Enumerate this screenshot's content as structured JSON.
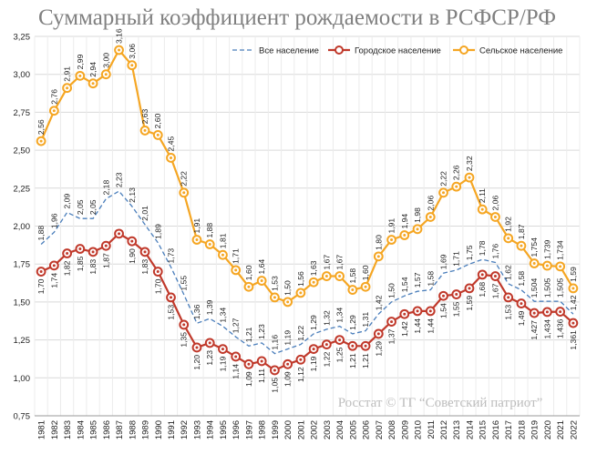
{
  "chart_data": {
    "type": "line",
    "title": "Суммарный коэффициент рождаемости в РСФСР/РФ",
    "source": "Росстат © ТГ “Советский патриот”",
    "x": [
      "1981",
      "1982",
      "1983",
      "1984",
      "1985",
      "1986",
      "1987",
      "1988",
      "1989",
      "1990",
      "1991",
      "1992",
      "1993",
      "1994",
      "1995",
      "1996",
      "1997",
      "1998",
      "1999",
      "2000",
      "2001",
      "2002",
      "2003",
      "2004",
      "2005",
      "2006",
      "2007",
      "2008",
      "2009",
      "2010",
      "2011",
      "2012",
      "2013",
      "2014",
      "2015",
      "2016",
      "2017",
      "2018",
      "2019",
      "2020",
      "2021",
      "2022"
    ],
    "ylim": [
      0.75,
      3.25
    ],
    "yticks": [
      "0,75",
      "1,00",
      "1,25",
      "1,50",
      "1,75",
      "2,00",
      "2,25",
      "2,50",
      "2,75",
      "3,00",
      "3,25"
    ],
    "grid": true,
    "legend_position": "top-right",
    "series": [
      {
        "name": "Все население",
        "style": "dashed",
        "color": "#4a7ebb",
        "values": [
          1.88,
          1.96,
          2.09,
          2.05,
          2.05,
          2.18,
          2.23,
          2.13,
          2.01,
          1.89,
          1.73,
          1.55,
          1.36,
          1.39,
          1.34,
          1.27,
          1.21,
          1.23,
          1.16,
          1.19,
          1.22,
          1.29,
          1.32,
          1.34,
          1.29,
          1.31,
          1.42,
          1.5,
          1.54,
          1.57,
          1.58,
          1.69,
          1.71,
          1.75,
          1.78,
          1.76,
          1.62,
          1.58,
          1.504,
          1.505,
          1.505,
          1.42
        ]
      },
      {
        "name": "Городское население",
        "style": "solid",
        "color": "#c0392b",
        "values": [
          1.7,
          1.74,
          1.82,
          1.85,
          1.83,
          1.87,
          1.95,
          1.9,
          1.83,
          1.7,
          1.53,
          1.35,
          1.2,
          1.23,
          1.19,
          1.14,
          1.09,
          1.11,
          1.05,
          1.09,
          1.12,
          1.19,
          1.22,
          1.25,
          1.21,
          1.21,
          1.29,
          1.37,
          1.42,
          1.44,
          1.44,
          1.54,
          1.55,
          1.59,
          1.68,
          1.67,
          1.53,
          1.49,
          1.427,
          1.434,
          1.436,
          1.361
        ],
        "labels": [
          "1,70",
          "1,74",
          "1,82",
          "1,85",
          "1,83",
          "1,87",
          "",
          "1,90",
          "1,83",
          "1,70",
          "1,53",
          "1,35",
          "1,20",
          "1,23",
          "1,19",
          "1,14",
          "1,09",
          "1,11",
          "1,05",
          "1,09",
          "1,12",
          "1,19",
          "1,22",
          "1,25",
          "1,21",
          "1,21",
          "1,29",
          "1,37",
          "1,42",
          "1,44",
          "1,44",
          "1,54",
          "1,55",
          "1,59",
          "1,68",
          "1,67",
          "1,53",
          "1,49",
          "1,427",
          "1,434",
          "1,436",
          "1,361"
        ]
      },
      {
        "name": "Сельское население",
        "style": "solid",
        "color": "#f5a623",
        "values": [
          2.56,
          2.76,
          2.91,
          2.99,
          2.94,
          3.0,
          3.16,
          3.06,
          2.63,
          2.6,
          2.45,
          2.22,
          1.91,
          1.88,
          1.81,
          1.71,
          1.6,
          1.64,
          1.53,
          1.5,
          1.56,
          1.63,
          1.67,
          1.67,
          1.58,
          1.6,
          1.8,
          1.91,
          1.94,
          1.98,
          2.06,
          2.22,
          2.26,
          2.32,
          2.11,
          2.06,
          1.92,
          1.87,
          1.754,
          1.739,
          1.734,
          1.59
        ],
        "labels": [
          "2,56",
          "2,76",
          "2,91",
          "2,99",
          "2,94",
          "3,00",
          "3,16",
          "3,06",
          "2,63",
          "2,60",
          "2,45",
          "2,22",
          "1,91",
          "1,88",
          "1,81",
          "1,71",
          "1,60",
          "1,64",
          "1,53",
          "1,50",
          "1,56",
          "1,63",
          "1,67",
          "1,67",
          "1,58",
          "1,60",
          "1,80",
          "1,91",
          "1,94",
          "1,98",
          "2,06",
          "2,22",
          "2,26",
          "2,32",
          "2,11",
          "2,06",
          "1,92",
          "1,87",
          "1,754",
          "1,739",
          "1,734",
          "1,59"
        ]
      }
    ],
    "all_population_labels": [
      {
        "x": "1981",
        "label": "1,88"
      },
      {
        "x": "1982",
        "label": "1,96"
      },
      {
        "x": "1983",
        "label": "2,09"
      },
      {
        "x": "1984",
        "label": "2,05"
      },
      {
        "x": "1985",
        "label": "2,05"
      },
      {
        "x": "1986",
        "label": "2,18"
      },
      {
        "x": "1987",
        "label": "2,23"
      },
      {
        "x": "1988",
        "label": "2,13"
      },
      {
        "x": "1989",
        "label": "2,01"
      },
      {
        "x": "1990",
        "label": "1,89"
      },
      {
        "x": "1991",
        "label": "1,73"
      },
      {
        "x": "1992",
        "label": "1,55"
      },
      {
        "x": "1993",
        "label": "1,36"
      },
      {
        "x": "1994",
        "label": "1,39"
      },
      {
        "x": "1995",
        "label": "1,34"
      },
      {
        "x": "1996",
        "label": "1,27"
      },
      {
        "x": "1997",
        "label": "1,21"
      },
      {
        "x": "1998",
        "label": "1,23"
      },
      {
        "x": "1999",
        "label": "1,16"
      },
      {
        "x": "2000",
        "label": "1,19"
      },
      {
        "x": "2001",
        "label": "1,22"
      },
      {
        "x": "2002",
        "label": "1,29"
      },
      {
        "x": "2003",
        "label": "1,32"
      },
      {
        "x": "2004",
        "label": "1,34"
      },
      {
        "x": "2005",
        "label": "1,29"
      },
      {
        "x": "2006",
        "label": "1,31"
      },
      {
        "x": "2007",
        "label": "1,42"
      },
      {
        "x": "2008",
        "label": "1,50"
      },
      {
        "x": "2009",
        "label": "1,54"
      },
      {
        "x": "2010",
        "label": "1,57"
      },
      {
        "x": "2011",
        "label": "1,58"
      },
      {
        "x": "2012",
        "label": "1,69"
      },
      {
        "x": "2013",
        "label": "1,71"
      },
      {
        "x": "2014",
        "label": "1,75"
      },
      {
        "x": "2015",
        "label": "1,78"
      },
      {
        "x": "2016",
        "label": "1,76"
      },
      {
        "x": "2017",
        "label": "1,62"
      },
      {
        "x": "2018",
        "label": "1,58"
      },
      {
        "x": "2019",
        "label": "1,504"
      },
      {
        "x": "2020",
        "label": "1,505"
      },
      {
        "x": "2021",
        "label": "1,505"
      },
      {
        "x": "2022",
        "label": "1,42"
      }
    ]
  }
}
